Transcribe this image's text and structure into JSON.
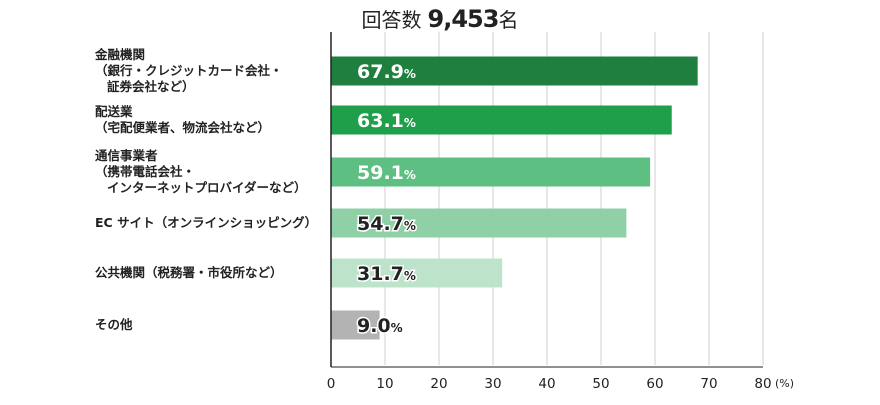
{
  "header": {
    "title": "回答数",
    "count": "9,453",
    "count_unit": "名"
  },
  "chart_data": {
    "type": "bar",
    "orientation": "horizontal",
    "title": "回答数 9,453名",
    "categories": [
      [
        "金融機関",
        "（銀行・クレジットカード会社・",
        "証券会社など）"
      ],
      [
        "配送業",
        "（宅配便業者、物流会社など）"
      ],
      [
        "通信事業者",
        "（携帯電話会社・",
        "インターネットプロバイダーなど）"
      ],
      [
        "EC サイト（オンラインショッピング）"
      ],
      [
        "公共機関（税務署・市役所など）"
      ],
      [
        "その他"
      ]
    ],
    "values": [
      67.9,
      63.1,
      59.1,
      54.7,
      31.7,
      9.0
    ],
    "value_labels": [
      "67.9",
      "63.1",
      "59.1",
      "54.7",
      "31.7",
      "9.0"
    ],
    "value_suffix": "%",
    "bar_colors": [
      "#1e7f3e",
      "#1f9f4a",
      "#5dbf82",
      "#8fd0a7",
      "#bde4cb",
      "#b3b3b3"
    ],
    "label_colors": [
      "#ffffff",
      "#ffffff",
      "#ffffff",
      "#222222",
      "#222222",
      "#222222"
    ],
    "xlim": [
      0,
      80
    ],
    "xticks": [
      0,
      10,
      20,
      30,
      40,
      50,
      60,
      70,
      80
    ],
    "x_unit": "(%)",
    "grid": true
  }
}
